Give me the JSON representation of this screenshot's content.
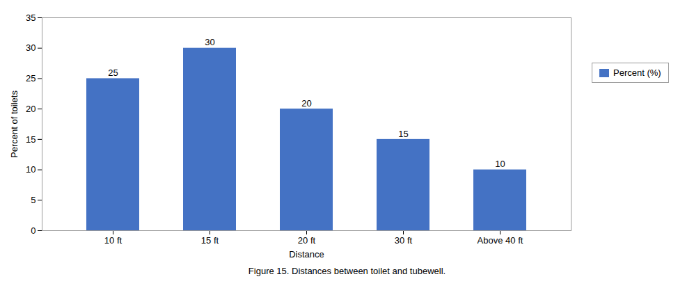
{
  "chart_data": {
    "type": "bar",
    "categories": [
      "10 ft",
      "15 ft",
      "20 ft",
      "30 ft",
      "Above 40 ft"
    ],
    "series": [
      {
        "name": "Percent (%)",
        "color": "#4472C4",
        "values": [
          25,
          30,
          20,
          15,
          10
        ]
      }
    ],
    "xlabel": "Distance",
    "ylabel": "Percent of toilets",
    "ylim": [
      0,
      35
    ],
    "yticks": [
      0,
      5,
      10,
      15,
      20,
      25,
      30,
      35
    ],
    "grid": false,
    "legend": "right",
    "data_labels": true,
    "caption": "Figure 15. Distances between toilet and tubewell."
  }
}
